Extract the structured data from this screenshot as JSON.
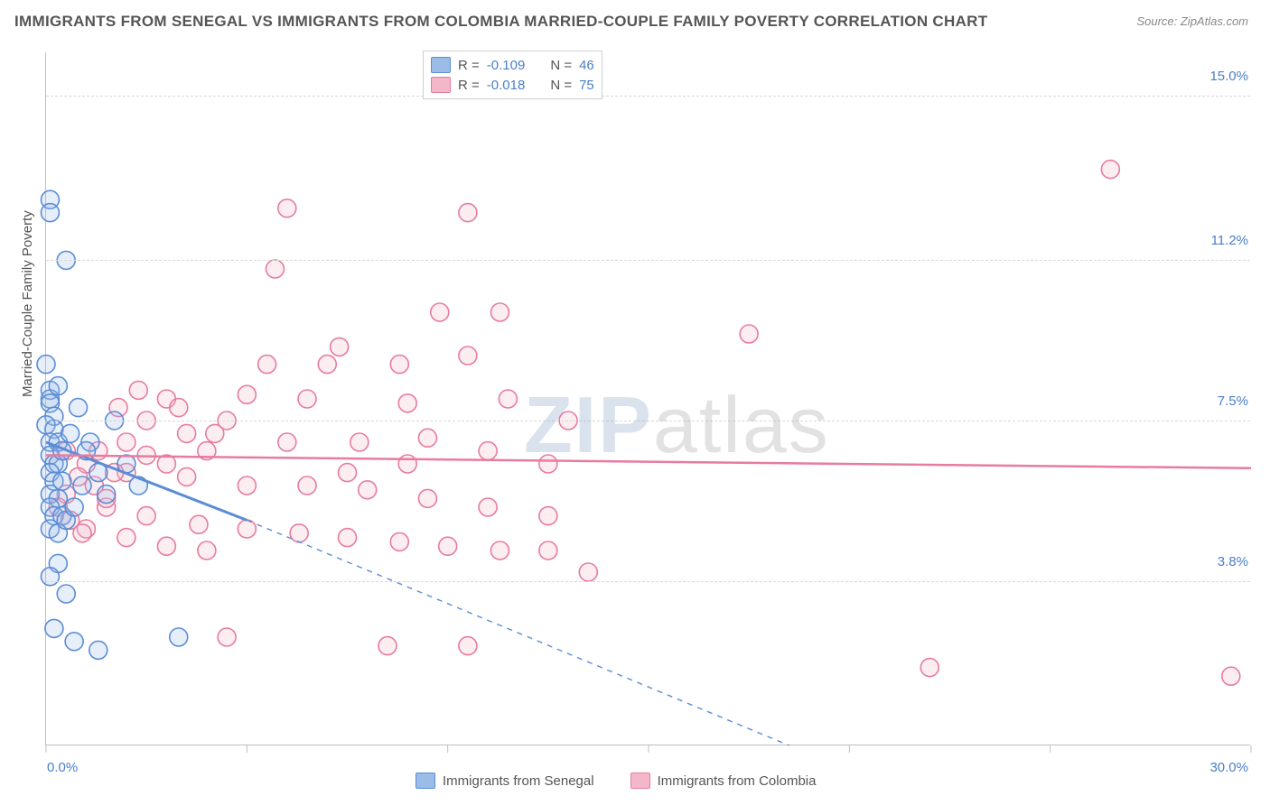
{
  "title": "IMMIGRANTS FROM SENEGAL VS IMMIGRANTS FROM COLOMBIA MARRIED-COUPLE FAMILY POVERTY CORRELATION CHART",
  "source": "Source: ZipAtlas.com",
  "watermark": {
    "bold": "ZIP",
    "light": "atlas"
  },
  "chart": {
    "type": "scatter",
    "ylabel": "Married-Couple Family Poverty",
    "xlim": [
      0.0,
      30.0
    ],
    "ylim": [
      0.0,
      16.0
    ],
    "ygrid": [
      3.8,
      7.5,
      11.2,
      15.0
    ],
    "ytick_labels": [
      "3.8%",
      "7.5%",
      "11.2%",
      "15.0%"
    ],
    "xlabel_min": "0.0%",
    "xlabel_max": "30.0%",
    "grid_color": "#d8d8d8",
    "axis_color": "#bfbfbf",
    "tick_label_color": "#4a7ec9",
    "tick_fontsize": 15,
    "title_fontsize": 17,
    "title_color": "#555555",
    "background_color": "#ffffff",
    "marker_radius": 10,
    "marker_stroke_width": 1.6,
    "marker_fill_opacity": 0.25,
    "series": [
      {
        "name": "Immigrants from Senegal",
        "stroke": "#5b8dd6",
        "fill": "#9cbce8",
        "R": -0.109,
        "N": 46,
        "regression": {
          "x1": 0.0,
          "y1": 7.0,
          "x2": 5.0,
          "y2": 5.2,
          "ext_x2": 18.5,
          "ext_y2": 0.0
        },
        "points": [
          [
            0.1,
            12.6
          ],
          [
            0.1,
            12.3
          ],
          [
            0.5,
            11.2
          ],
          [
            0.0,
            8.8
          ],
          [
            0.1,
            8.2
          ],
          [
            0.1,
            8.0
          ],
          [
            0.3,
            8.3
          ],
          [
            0.1,
            7.9
          ],
          [
            0.2,
            7.6
          ],
          [
            0.0,
            7.4
          ],
          [
            0.2,
            7.3
          ],
          [
            0.1,
            7.0
          ],
          [
            0.3,
            7.0
          ],
          [
            0.1,
            6.7
          ],
          [
            0.2,
            6.5
          ],
          [
            0.3,
            6.5
          ],
          [
            0.1,
            6.3
          ],
          [
            0.2,
            6.1
          ],
          [
            0.4,
            6.1
          ],
          [
            0.1,
            5.8
          ],
          [
            0.3,
            5.7
          ],
          [
            0.1,
            5.5
          ],
          [
            0.2,
            5.3
          ],
          [
            0.4,
            5.3
          ],
          [
            0.1,
            5.0
          ],
          [
            0.3,
            4.9
          ],
          [
            0.5,
            5.2
          ],
          [
            0.7,
            5.5
          ],
          [
            0.9,
            6.0
          ],
          [
            1.1,
            7.0
          ],
          [
            1.3,
            6.3
          ],
          [
            1.5,
            5.8
          ],
          [
            1.7,
            7.5
          ],
          [
            2.0,
            6.5
          ],
          [
            2.3,
            6.0
          ],
          [
            0.3,
            4.2
          ],
          [
            0.1,
            3.9
          ],
          [
            0.5,
            3.5
          ],
          [
            0.2,
            2.7
          ],
          [
            0.7,
            2.4
          ],
          [
            1.3,
            2.2
          ],
          [
            3.3,
            2.5
          ],
          [
            0.8,
            7.8
          ],
          [
            0.6,
            7.2
          ],
          [
            0.4,
            6.8
          ],
          [
            1.0,
            6.8
          ]
        ]
      },
      {
        "name": "Immigrants from Colombia",
        "stroke": "#e87ba0",
        "fill": "#f4b6c9",
        "R": -0.018,
        "N": 75,
        "regression": {
          "x1": 0.0,
          "y1": 6.7,
          "x2": 30.0,
          "y2": 6.4
        },
        "points": [
          [
            26.5,
            13.3
          ],
          [
            6.0,
            12.4
          ],
          [
            10.5,
            12.3
          ],
          [
            5.7,
            11.0
          ],
          [
            9.8,
            10.0
          ],
          [
            11.3,
            10.0
          ],
          [
            17.5,
            9.5
          ],
          [
            7.3,
            9.2
          ],
          [
            10.5,
            9.0
          ],
          [
            7.0,
            8.8
          ],
          [
            22.0,
            1.8
          ],
          [
            29.5,
            1.6
          ],
          [
            5.5,
            8.8
          ],
          [
            8.8,
            8.8
          ],
          [
            3.0,
            8.0
          ],
          [
            5.0,
            8.1
          ],
          [
            6.5,
            8.0
          ],
          [
            9.0,
            7.9
          ],
          [
            11.5,
            8.0
          ],
          [
            13.5,
            4.0
          ],
          [
            2.5,
            7.5
          ],
          [
            4.2,
            7.2
          ],
          [
            6.0,
            7.0
          ],
          [
            7.8,
            7.0
          ],
          [
            9.5,
            7.1
          ],
          [
            11.0,
            6.8
          ],
          [
            12.5,
            6.5
          ],
          [
            1.0,
            6.5
          ],
          [
            2.0,
            6.3
          ],
          [
            3.5,
            6.2
          ],
          [
            5.0,
            6.0
          ],
          [
            6.5,
            6.0
          ],
          [
            8.0,
            5.9
          ],
          [
            9.5,
            5.7
          ],
          [
            11.0,
            5.5
          ],
          [
            12.5,
            5.3
          ],
          [
            10.5,
            2.3
          ],
          [
            8.5,
            2.3
          ],
          [
            0.5,
            5.8
          ],
          [
            1.5,
            5.5
          ],
          [
            2.5,
            5.3
          ],
          [
            3.8,
            5.1
          ],
          [
            5.0,
            5.0
          ],
          [
            6.3,
            4.9
          ],
          [
            7.5,
            4.8
          ],
          [
            8.8,
            4.7
          ],
          [
            10.0,
            4.6
          ],
          [
            11.3,
            4.5
          ],
          [
            12.5,
            4.5
          ],
          [
            4.5,
            2.5
          ],
          [
            1.0,
            5.0
          ],
          [
            2.0,
            4.8
          ],
          [
            3.0,
            4.6
          ],
          [
            4.0,
            4.5
          ],
          [
            0.5,
            6.8
          ],
          [
            0.8,
            6.2
          ],
          [
            1.2,
            6.0
          ],
          [
            1.5,
            5.7
          ],
          [
            2.0,
            7.0
          ],
          [
            2.5,
            6.7
          ],
          [
            3.0,
            6.5
          ],
          [
            3.5,
            7.2
          ],
          [
            4.0,
            6.8
          ],
          [
            4.5,
            7.5
          ],
          [
            1.8,
            7.8
          ],
          [
            2.3,
            8.2
          ],
          [
            3.3,
            7.8
          ],
          [
            0.3,
            5.5
          ],
          [
            0.6,
            5.2
          ],
          [
            0.9,
            4.9
          ],
          [
            1.3,
            6.8
          ],
          [
            1.7,
            6.3
          ],
          [
            13.0,
            7.5
          ],
          [
            7.5,
            6.3
          ],
          [
            9.0,
            6.5
          ]
        ]
      }
    ]
  },
  "legend_top": {
    "rows": [
      {
        "swatch_fill": "#9cbce8",
        "swatch_stroke": "#5b8dd6",
        "R_label": "R =",
        "R_val": "-0.109",
        "N_label": "N =",
        "N_val": "46"
      },
      {
        "swatch_fill": "#f4b6c9",
        "swatch_stroke": "#e87ba0",
        "R_label": "R =",
        "R_val": "-0.018",
        "N_label": "N =",
        "N_val": "75"
      }
    ]
  },
  "legend_bottom": [
    {
      "swatch_fill": "#9cbce8",
      "swatch_stroke": "#5b8dd6",
      "label": "Immigrants from Senegal"
    },
    {
      "swatch_fill": "#f4b6c9",
      "swatch_stroke": "#e87ba0",
      "label": "Immigrants from Colombia"
    }
  ]
}
